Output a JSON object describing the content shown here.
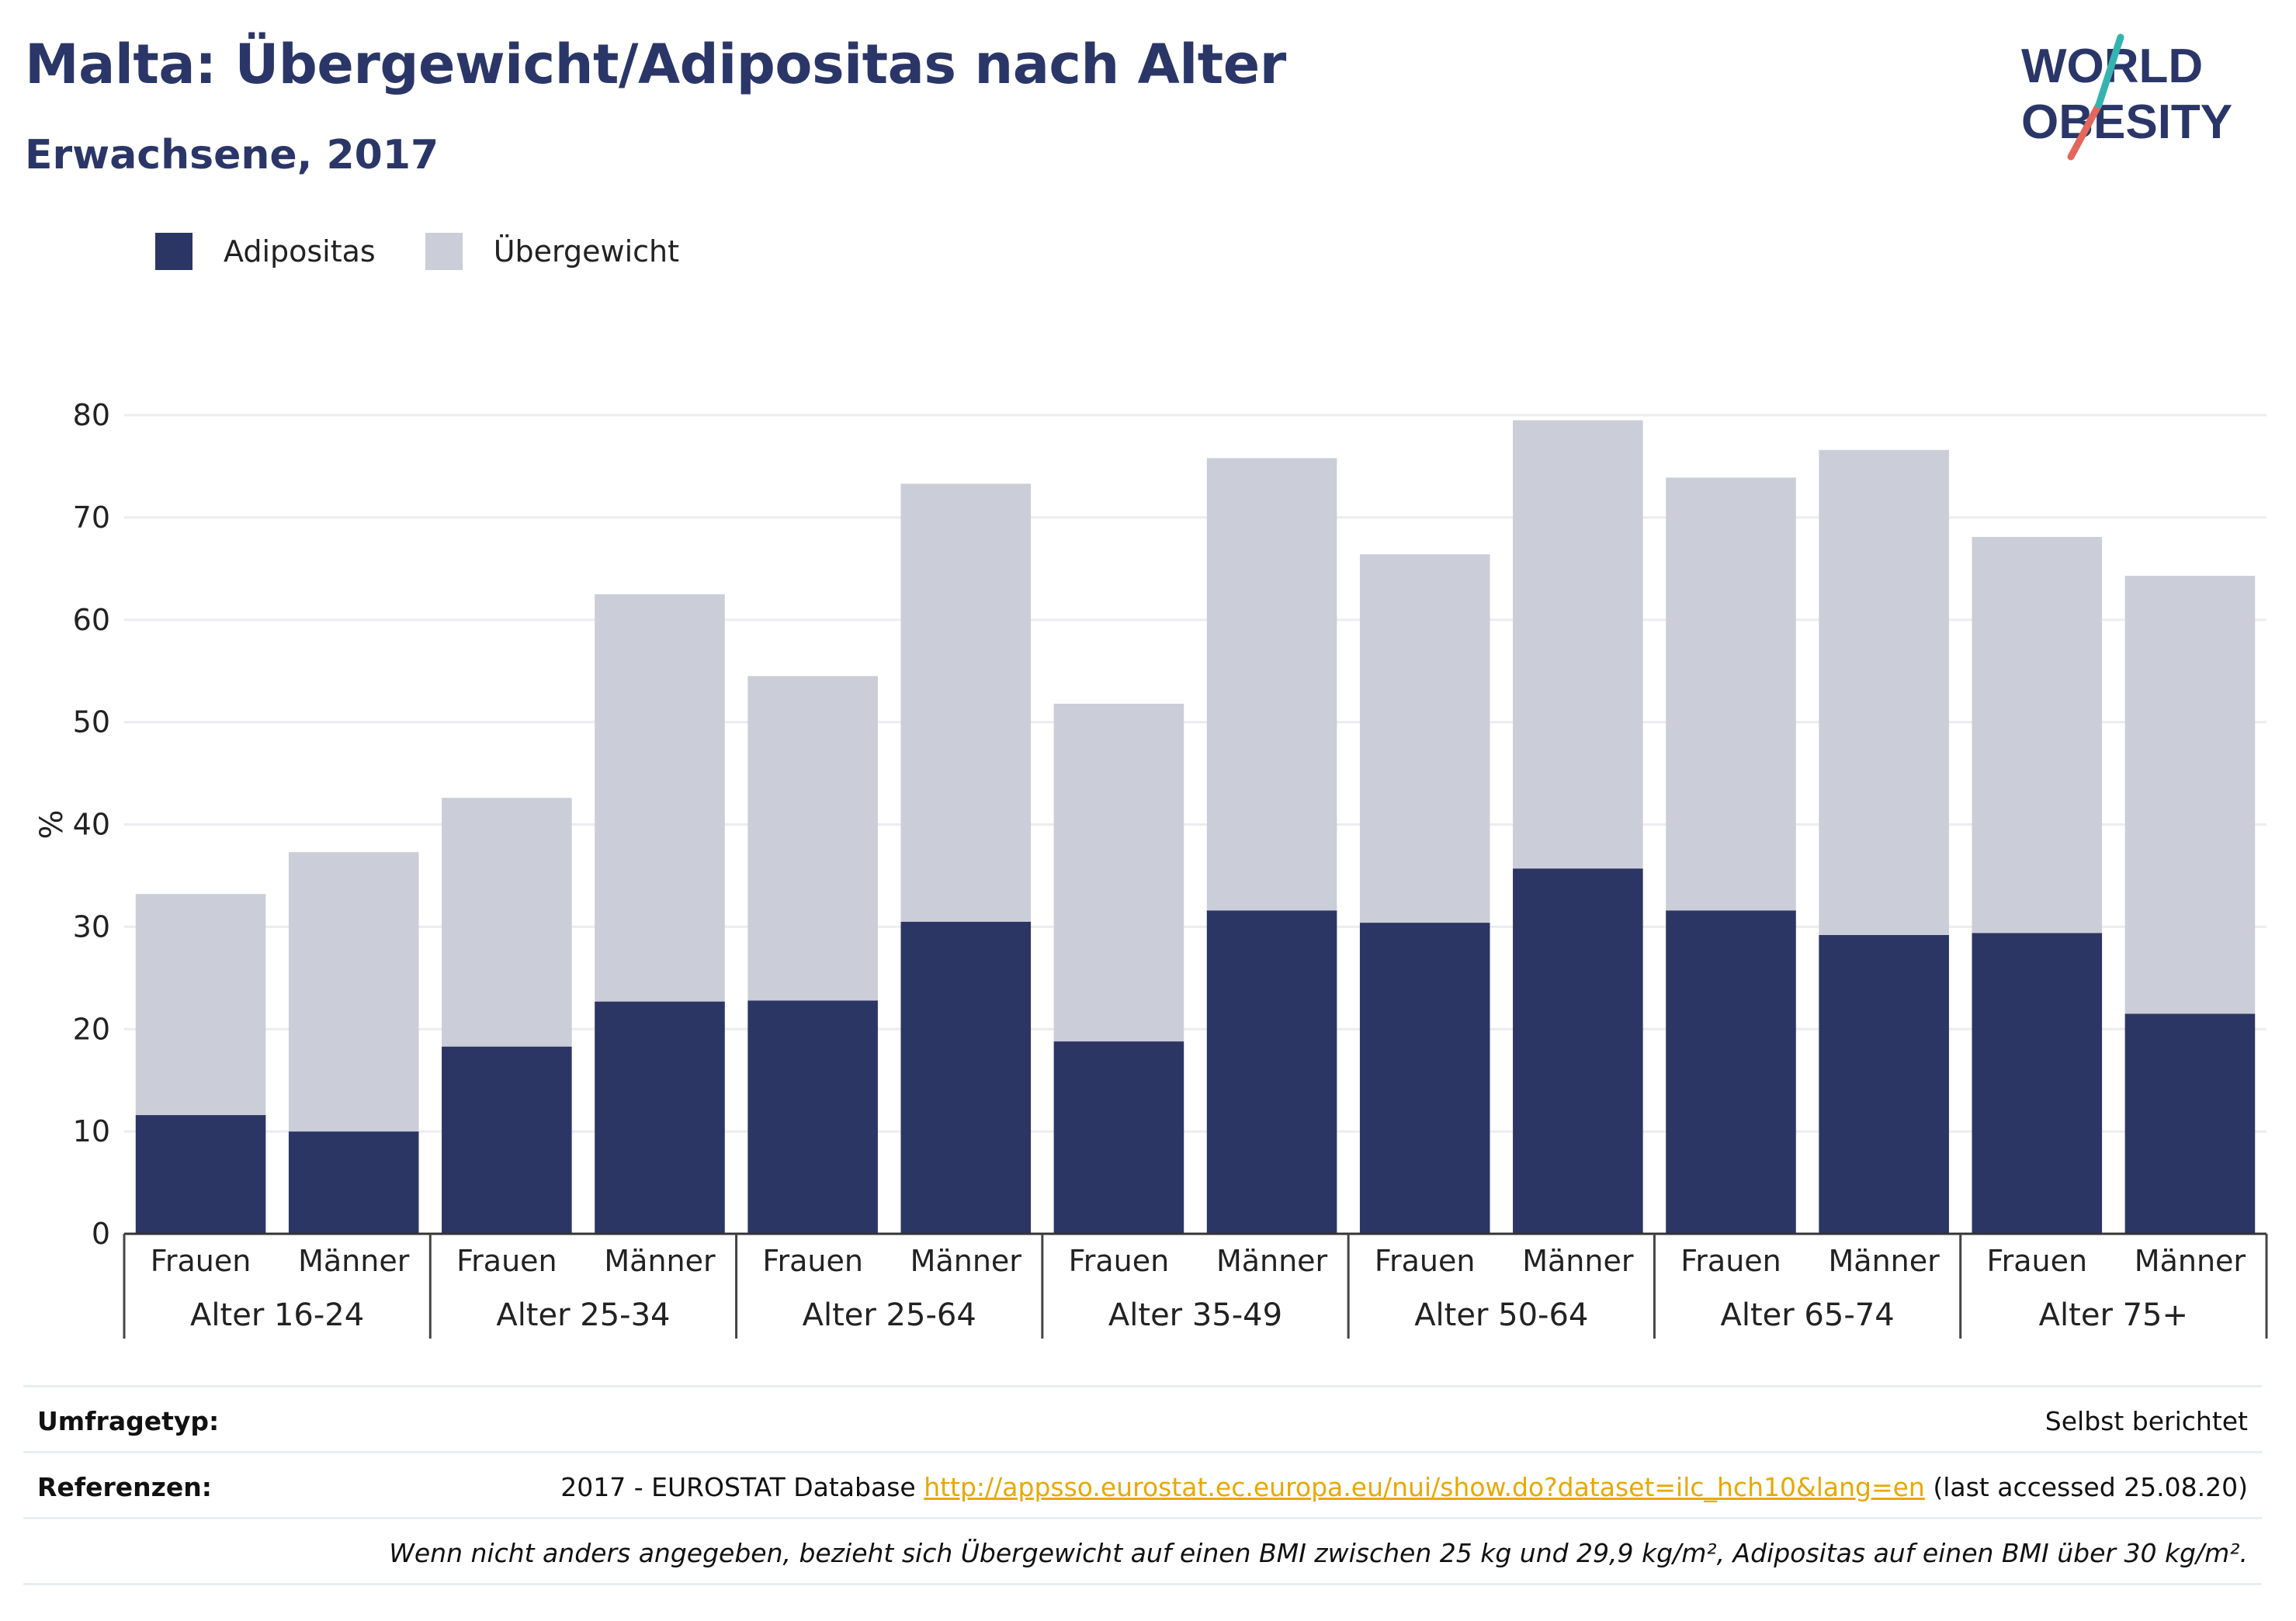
{
  "title": "Malta: Übergewicht/Adipositas nach Alter",
  "subtitle": "Erwachsene, 2017",
  "logo": {
    "line1": "WORLD",
    "line2": "OBESITY"
  },
  "colors": {
    "adipositas": "#2b3664",
    "uebergewicht": "#cbcdd8",
    "title": "#2b3668",
    "link": "#e8a800",
    "grid": "#ececf1"
  },
  "legend": [
    {
      "label": "Adipositas",
      "color": "#2b3664"
    },
    {
      "label": "Übergewicht",
      "color": "#cbcdd8"
    }
  ],
  "chart_data": {
    "type": "bar",
    "stacked": true,
    "ylabel": "%",
    "ylim": [
      0,
      80
    ],
    "yticks": [
      0,
      10,
      20,
      30,
      40,
      50,
      60,
      70,
      80
    ],
    "grid": true,
    "groups": [
      "Alter 16-24",
      "Alter 25-34",
      "Alter 25-64",
      "Alter 35-49",
      "Alter 50-64",
      "Alter 65-74",
      "Alter 75+"
    ],
    "sexes": [
      "Frauen",
      "Männer"
    ],
    "series": [
      {
        "name": "Adipositas",
        "values": [
          11.6,
          10.0,
          18.3,
          22.7,
          22.8,
          30.5,
          18.8,
          31.6,
          30.4,
          35.7,
          31.6,
          29.2,
          29.4,
          21.5
        ]
      },
      {
        "name": "Übergewicht",
        "values": [
          21.6,
          27.3,
          24.3,
          39.8,
          31.7,
          42.8,
          33.0,
          44.2,
          36.0,
          43.8,
          42.3,
          47.4,
          38.7,
          42.8
        ]
      }
    ],
    "totals": [
      33.2,
      37.3,
      42.6,
      62.5,
      54.5,
      73.3,
      51.8,
      75.8,
      66.4,
      79.5,
      73.9,
      76.6,
      68.1,
      64.3
    ]
  },
  "table": {
    "survey_label": "Umfragetyp:",
    "survey_value": "Selbst berichtet",
    "ref_label": "Referenzen:",
    "ref_prefix": "2017 - EUROSTAT Database ",
    "ref_link": "http://appsso.eurostat.ec.europa.eu/nui/show.do?dataset=ilc_hch10&lang=en",
    "ref_suffix": " (last accessed 25.08.20)",
    "note": "Wenn nicht anders angegeben, bezieht sich Übergewicht auf einen BMI zwischen 25 kg und 29,9 kg/m², Adipositas auf einen BMI über 30 kg/m²."
  }
}
